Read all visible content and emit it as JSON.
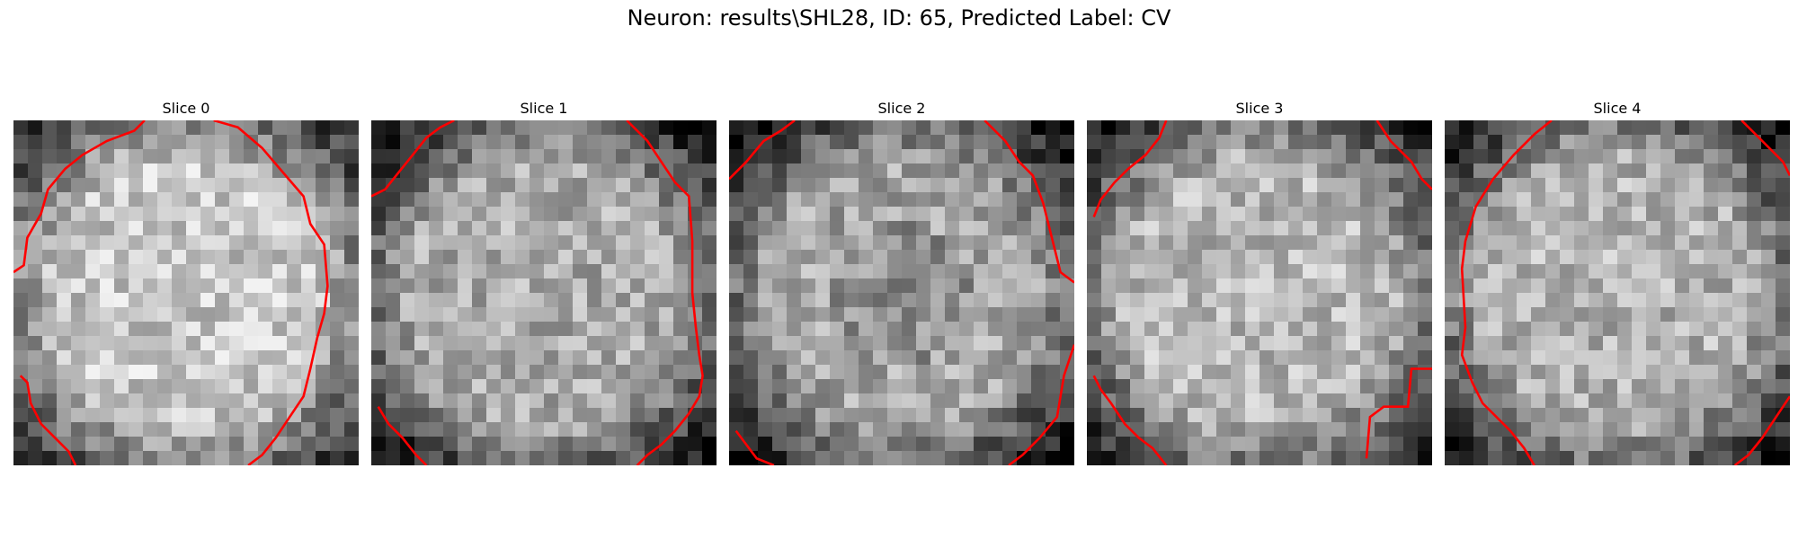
{
  "figure": {
    "suptitle": "Neuron: results\\SHL28, ID: 65, Predicted Label: CV",
    "colormap": "gray",
    "contour_color": "#ff0000",
    "grid_size": 24
  },
  "slices": [
    {
      "title": "Slice 0",
      "mean": 0.66,
      "contours": [
        [
          [
            0.0,
            0.44
          ],
          [
            0.03,
            0.42
          ],
          [
            0.04,
            0.34
          ],
          [
            0.08,
            0.27
          ],
          [
            0.1,
            0.2
          ],
          [
            0.15,
            0.14
          ],
          [
            0.2,
            0.1
          ],
          [
            0.27,
            0.06
          ],
          [
            0.35,
            0.03
          ],
          [
            0.38,
            0.0
          ]
        ],
        [
          [
            0.58,
            0.0
          ],
          [
            0.65,
            0.02
          ],
          [
            0.72,
            0.08
          ],
          [
            0.78,
            0.15
          ],
          [
            0.84,
            0.22
          ],
          [
            0.86,
            0.3
          ],
          [
            0.9,
            0.36
          ],
          [
            0.91,
            0.48
          ],
          [
            0.9,
            0.56
          ],
          [
            0.88,
            0.63
          ],
          [
            0.86,
            0.72
          ],
          [
            0.84,
            0.8
          ],
          [
            0.8,
            0.86
          ],
          [
            0.76,
            0.92
          ],
          [
            0.72,
            0.97
          ],
          [
            0.68,
            1.0
          ]
        ],
        [
          [
            0.02,
            0.74
          ],
          [
            0.04,
            0.76
          ],
          [
            0.05,
            0.82
          ],
          [
            0.08,
            0.88
          ],
          [
            0.12,
            0.92
          ],
          [
            0.16,
            0.96
          ],
          [
            0.18,
            1.0
          ]
        ]
      ]
    },
    {
      "title": "Slice 1",
      "mean": 0.55,
      "contours": [
        [
          [
            0.0,
            0.22
          ],
          [
            0.04,
            0.2
          ],
          [
            0.08,
            0.15
          ],
          [
            0.12,
            0.1
          ],
          [
            0.16,
            0.05
          ],
          [
            0.2,
            0.02
          ],
          [
            0.24,
            0.0
          ]
        ],
        [
          [
            0.74,
            0.0
          ],
          [
            0.8,
            0.06
          ],
          [
            0.84,
            0.12
          ],
          [
            0.88,
            0.18
          ],
          [
            0.92,
            0.22
          ],
          [
            0.93,
            0.35
          ],
          [
            0.93,
            0.5
          ],
          [
            0.94,
            0.6
          ],
          [
            0.95,
            0.68
          ],
          [
            0.96,
            0.74
          ],
          [
            0.95,
            0.8
          ],
          [
            0.92,
            0.85
          ],
          [
            0.88,
            0.9
          ],
          [
            0.84,
            0.94
          ],
          [
            0.8,
            0.97
          ],
          [
            0.77,
            1.0
          ]
        ],
        [
          [
            0.02,
            0.83
          ],
          [
            0.05,
            0.88
          ],
          [
            0.09,
            0.92
          ],
          [
            0.13,
            0.97
          ],
          [
            0.16,
            1.0
          ]
        ]
      ]
    },
    {
      "title": "Slice 2",
      "mean": 0.53,
      "contours": [
        [
          [
            0.0,
            0.17
          ],
          [
            0.05,
            0.12
          ],
          [
            0.1,
            0.06
          ],
          [
            0.15,
            0.03
          ],
          [
            0.19,
            0.0
          ]
        ],
        [
          [
            0.74,
            0.0
          ],
          [
            0.8,
            0.06
          ],
          [
            0.84,
            0.12
          ],
          [
            0.88,
            0.16
          ],
          [
            0.91,
            0.24
          ],
          [
            0.93,
            0.32
          ],
          [
            0.96,
            0.44
          ],
          [
            1.0,
            0.47
          ]
        ],
        [
          [
            1.0,
            0.65
          ],
          [
            0.97,
            0.74
          ],
          [
            0.95,
            0.86
          ],
          [
            0.9,
            0.92
          ],
          [
            0.85,
            0.97
          ],
          [
            0.81,
            1.0
          ]
        ],
        [
          [
            0.02,
            0.9
          ],
          [
            0.05,
            0.94
          ],
          [
            0.08,
            0.98
          ],
          [
            0.13,
            1.0
          ]
        ]
      ]
    },
    {
      "title": "Slice 3",
      "mean": 0.6,
      "contours": [
        [
          [
            0.02,
            0.28
          ],
          [
            0.04,
            0.23
          ],
          [
            0.08,
            0.18
          ],
          [
            0.12,
            0.14
          ],
          [
            0.17,
            0.1
          ],
          [
            0.21,
            0.05
          ],
          [
            0.23,
            0.0
          ]
        ],
        [
          [
            0.84,
            0.0
          ],
          [
            0.88,
            0.06
          ],
          [
            0.94,
            0.12
          ],
          [
            0.97,
            0.17
          ],
          [
            1.0,
            0.2
          ]
        ],
        [
          [
            0.02,
            0.74
          ],
          [
            0.04,
            0.78
          ],
          [
            0.07,
            0.82
          ],
          [
            0.11,
            0.88
          ],
          [
            0.15,
            0.92
          ],
          [
            0.19,
            0.95
          ],
          [
            0.23,
            1.0
          ]
        ],
        [
          [
            0.81,
            0.98
          ],
          [
            0.82,
            0.86
          ],
          [
            0.86,
            0.83
          ],
          [
            0.93,
            0.83
          ],
          [
            0.94,
            0.72
          ],
          [
            1.0,
            0.72
          ]
        ]
      ]
    },
    {
      "title": "Slice 4",
      "mean": 0.58,
      "contours": [
        [
          [
            0.05,
            0.43
          ],
          [
            0.06,
            0.35
          ],
          [
            0.09,
            0.25
          ],
          [
            0.14,
            0.17
          ],
          [
            0.2,
            0.1
          ],
          [
            0.26,
            0.04
          ],
          [
            0.31,
            0.0
          ]
        ],
        [
          [
            0.86,
            0.0
          ],
          [
            0.92,
            0.06
          ],
          [
            0.98,
            0.12
          ],
          [
            1.0,
            0.16
          ]
        ],
        [
          [
            0.05,
            0.43
          ],
          [
            0.06,
            0.6
          ],
          [
            0.05,
            0.68
          ],
          [
            0.08,
            0.76
          ],
          [
            0.11,
            0.82
          ],
          [
            0.15,
            0.86
          ],
          [
            0.19,
            0.9
          ],
          [
            0.23,
            0.95
          ],
          [
            0.26,
            1.0
          ]
        ],
        [
          [
            1.0,
            0.8
          ],
          [
            0.96,
            0.86
          ],
          [
            0.92,
            0.92
          ],
          [
            0.88,
            0.97
          ],
          [
            0.84,
            1.0
          ]
        ]
      ]
    }
  ]
}
